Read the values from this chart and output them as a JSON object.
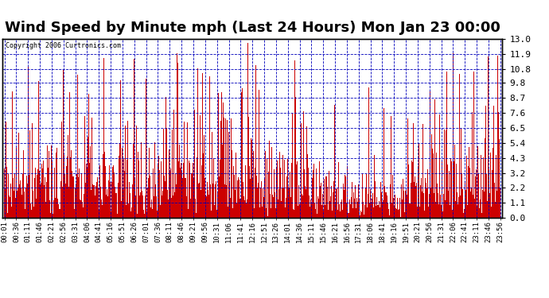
{
  "title": "Wind Speed by Minute mph (Last 24 Hours) Mon Jan 23 00:00",
  "copyright": "Copyright 2006 Curtronics.com",
  "yticks": [
    0.0,
    1.1,
    2.2,
    3.2,
    4.3,
    5.4,
    6.5,
    7.6,
    8.7,
    9.8,
    10.8,
    11.9,
    13.0
  ],
  "ylim": [
    0.0,
    13.0
  ],
  "bar_color": "#cc0000",
  "background_color": "#ffffff",
  "grid_color": "#0000bb",
  "title_fontsize": 13,
  "xlabel_fontsize": 6.5,
  "ylabel_fontsize": 8,
  "copyright_fontsize": 6,
  "xtick_labels": [
    "00:01",
    "00:36",
    "01:11",
    "01:46",
    "02:21",
    "02:56",
    "03:31",
    "04:06",
    "04:41",
    "05:16",
    "05:51",
    "06:26",
    "07:01",
    "07:36",
    "08:11",
    "08:46",
    "09:21",
    "09:56",
    "10:31",
    "11:06",
    "11:41",
    "12:16",
    "12:51",
    "13:26",
    "14:01",
    "14:36",
    "15:11",
    "15:46",
    "16:21",
    "16:56",
    "17:31",
    "18:06",
    "18:41",
    "19:16",
    "19:51",
    "20:21",
    "20:56",
    "21:31",
    "22:06",
    "22:41",
    "23:11",
    "23:46",
    "23:56"
  ],
  "num_minutes": 1440,
  "seed": 42
}
